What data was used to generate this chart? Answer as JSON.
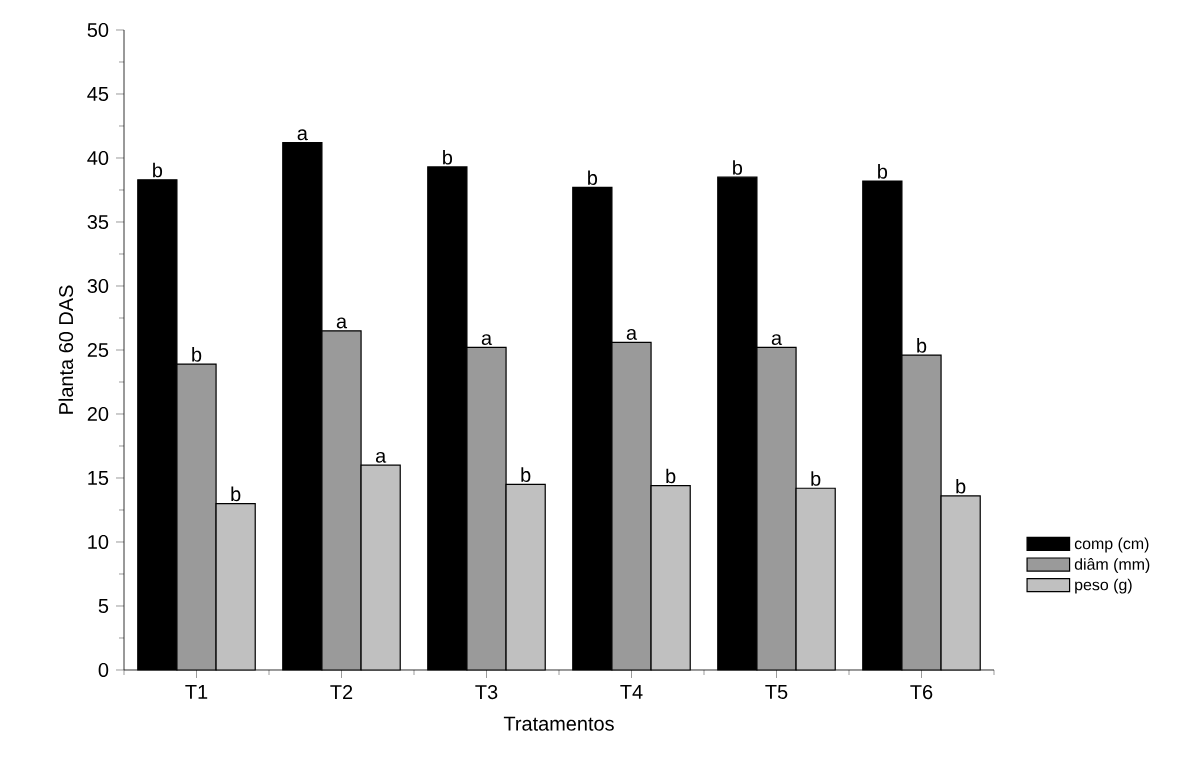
{
  "chart_data": {
    "type": "bar",
    "xlabel": "Tratamentos",
    "ylabel": "Planta 60 DAS",
    "categories": [
      "T1",
      "T2",
      "T3",
      "T4",
      "T5",
      "T6"
    ],
    "series": [
      {
        "name": "comp (cm)",
        "color": "#000000",
        "values": [
          38.3,
          41.2,
          39.3,
          37.7,
          38.5,
          38.2
        ],
        "value_labels": [
          "b",
          "a",
          "b",
          "b",
          "b",
          "b"
        ]
      },
      {
        "name": "diâm (mm)",
        "color": "#9a9a9a",
        "values": [
          23.9,
          26.5,
          25.2,
          25.6,
          25.2,
          24.6
        ],
        "value_labels": [
          "b",
          "a",
          "a",
          "a",
          "a",
          "b"
        ]
      },
      {
        "name": "peso (g)",
        "color": "#c0c0c0",
        "values": [
          13.0,
          16.0,
          14.5,
          14.4,
          14.2,
          13.6
        ],
        "value_labels": [
          "b",
          "a",
          "b",
          "b",
          "b",
          "b"
        ]
      }
    ],
    "ylim": [
      0,
      50
    ],
    "yticks": [
      0,
      5,
      10,
      15,
      20,
      25,
      30,
      35,
      40,
      45,
      50
    ],
    "legend": "right"
  }
}
